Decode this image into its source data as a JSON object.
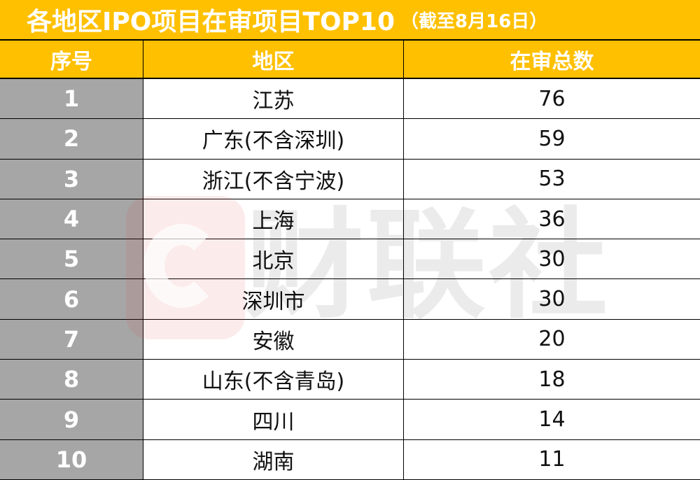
{
  "header": {
    "title": "各地区IPO项目在审项目TOP10",
    "subtitle": "（截至8月16日）"
  },
  "table": {
    "columns": [
      "序号",
      "地区",
      "在审总数"
    ],
    "rows": [
      [
        1,
        "江苏",
        76
      ],
      [
        2,
        "广东(不含深圳)",
        59
      ],
      [
        3,
        "浙江(不含宁波)",
        53
      ],
      [
        4,
        "上海",
        36
      ],
      [
        5,
        "北京",
        30
      ],
      [
        6,
        "深圳市",
        30
      ],
      [
        7,
        "安徽",
        20
      ],
      [
        8,
        "山东(不含青岛)",
        18
      ],
      [
        9,
        "四川",
        14
      ],
      [
        10,
        "湖南",
        11
      ]
    ]
  },
  "watermark": {
    "text": "财联社"
  }
}
